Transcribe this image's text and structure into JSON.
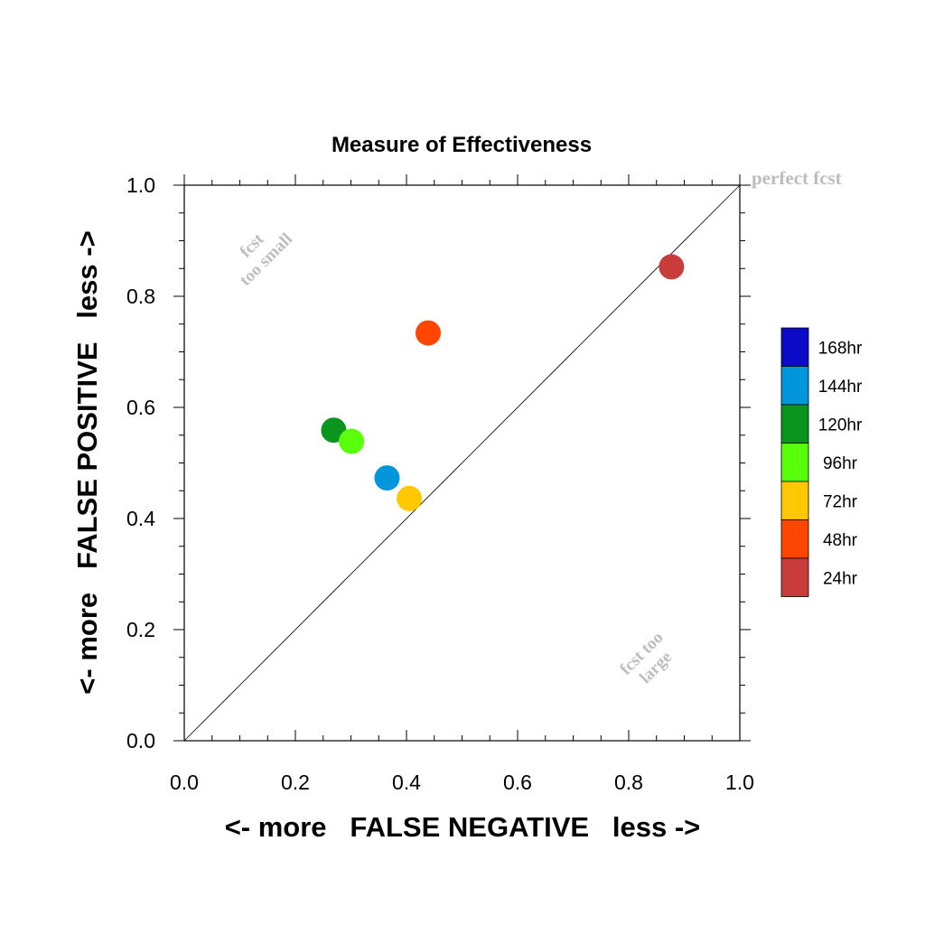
{
  "chart_data": {
    "type": "scatter",
    "title": "Measure of Effectiveness",
    "xlabel": "<- more   FALSE NEGATIVE   less ->",
    "ylabel": "<- more   FALSE POSITIVE   less ->",
    "xlim": [
      0.0,
      1.0
    ],
    "ylim": [
      0.0,
      1.0
    ],
    "x_ticks": [
      "0.0",
      "0.2",
      "0.4",
      "0.6",
      "0.8",
      "1.0"
    ],
    "y_ticks": [
      "0.0",
      "0.2",
      "0.4",
      "0.6",
      "0.8",
      "1.0"
    ],
    "grid": false,
    "reference_line": {
      "from": [
        0.0,
        0.0
      ],
      "to": [
        1.0,
        1.0
      ]
    },
    "annotations": {
      "perfect": "perfect fcst",
      "small_line1": "fcst",
      "small_line2": "too small",
      "large_line1": "fcst too",
      "large_line2": "large"
    },
    "legend": {
      "placement": "right",
      "entries": [
        {
          "label": "168hr",
          "color": "#0a0ac8"
        },
        {
          "label": "144hr",
          "color": "#0096dc"
        },
        {
          "label": "120hr",
          "color": "#0a961e"
        },
        {
          "label": "96hr",
          "color": "#5aff0a"
        },
        {
          "label": "72hr",
          "color": "#ffc800"
        },
        {
          "label": "48hr",
          "color": "#ff4600"
        },
        {
          "label": "24hr",
          "color": "#c83c3c"
        }
      ]
    },
    "points": [
      {
        "name": "24hr",
        "x": 0.877,
        "y": 0.853,
        "color": "#c83c3c"
      },
      {
        "name": "48hr",
        "x": 0.439,
        "y": 0.734,
        "color": "#ff4600"
      },
      {
        "name": "120hr",
        "x": 0.269,
        "y": 0.559,
        "color": "#0a961e"
      },
      {
        "name": "96hr",
        "x": 0.301,
        "y": 0.539,
        "color": "#5aff0a"
      },
      {
        "name": "144hr",
        "x": 0.365,
        "y": 0.473,
        "color": "#0096dc"
      },
      {
        "name": "72hr",
        "x": 0.405,
        "y": 0.436,
        "color": "#ffc800"
      }
    ]
  }
}
